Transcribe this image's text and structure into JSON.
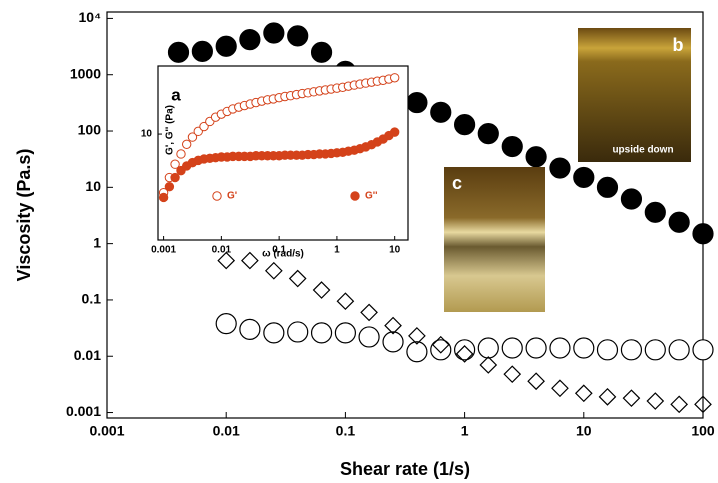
{
  "chart_data": [
    {
      "type": "scatter",
      "xlabel": "Shear rate (1/s)",
      "ylabel": "Viscosity (Pa.s)",
      "log_x": true,
      "log_y": true,
      "xlim": [
        0.001,
        100
      ],
      "ylim": [
        0.0008,
        13000
      ],
      "xticks": [
        0.001,
        0.01,
        0.1,
        1,
        10,
        100
      ],
      "yticks": [
        0.001,
        0.01,
        0.1,
        1,
        10,
        100,
        1000,
        {
          "value": 10000,
          "label": "10⁴"
        }
      ],
      "annotations": [
        "b",
        "upside down",
        "c"
      ],
      "series": [
        {
          "color": "#000000",
          "marker": "circle-filled",
          "x": [
            0.00398,
            0.00631,
            0.01,
            0.0158,
            0.0251,
            0.0398,
            0.0631,
            0.1,
            0.158,
            0.251,
            0.398,
            0.631,
            1,
            1.58,
            2.51,
            3.98,
            6.31,
            10,
            15.8,
            25.1,
            39.8,
            63.1,
            100
          ],
          "values": [
            2500,
            2600,
            3200,
            4200,
            5500,
            4900,
            2500,
            1150,
            800,
            510,
            320,
            215,
            130,
            90,
            53,
            35,
            22,
            15,
            10,
            6.2,
            3.6,
            2.4,
            1.5
          ]
        },
        {
          "color": "#000000",
          "marker": "circle-open",
          "x": [
            0.01,
            0.0158,
            0.0251,
            0.0398,
            0.0631,
            0.1,
            0.158,
            0.251,
            0.398,
            0.631,
            1,
            1.58,
            2.51,
            3.98,
            6.31,
            10,
            15.8,
            25.1,
            39.8,
            63.1,
            100
          ],
          "values": [
            0.038,
            0.03,
            0.026,
            0.027,
            0.026,
            0.026,
            0.022,
            0.018,
            0.012,
            0.013,
            0.013,
            0.014,
            0.014,
            0.014,
            0.014,
            0.014,
            0.013,
            0.013,
            0.013,
            0.013,
            0.013
          ]
        },
        {
          "color": "#000000",
          "marker": "diamond-open",
          "x": [
            0.01,
            0.0158,
            0.0251,
            0.0398,
            0.0631,
            0.1,
            0.158,
            0.251,
            0.398,
            0.631,
            1,
            1.58,
            2.51,
            3.98,
            6.31,
            10,
            15.8,
            25.1,
            39.8,
            63.1,
            100
          ],
          "values": [
            0.5,
            0.5,
            0.33,
            0.24,
            0.15,
            0.095,
            0.06,
            0.035,
            0.023,
            0.016,
            0.011,
            0.007,
            0.0048,
            0.0036,
            0.0027,
            0.0022,
            0.0019,
            0.0018,
            0.0016,
            0.0014,
            0.0014
          ]
        }
      ]
    },
    {
      "type": "scatter",
      "xlabel": "ω (rad/s)",
      "ylabel": "G', G'' (Pa)",
      "log_x": true,
      "log_y": true,
      "xlim": [
        0.0008,
        17
      ],
      "ylim": [
        0.25,
        107
      ],
      "xticks": [
        0.001,
        0.01,
        0.1,
        1,
        10
      ],
      "yticks": [
        10
      ],
      "annotations": [
        "a"
      ],
      "series": [
        {
          "name": "G'",
          "color": "#d4421a",
          "marker": "circle-open",
          "x": [
            0.001,
            0.00126,
            0.00158,
            0.002,
            0.00251,
            0.00316,
            0.00398,
            0.00501,
            0.00631,
            0.00794,
            0.01,
            0.0126,
            0.0158,
            0.02,
            0.0251,
            0.0316,
            0.0398,
            0.0501,
            0.0631,
            0.0794,
            0.1,
            0.126,
            0.158,
            0.2,
            0.251,
            0.316,
            0.398,
            0.501,
            0.631,
            0.794,
            1,
            1.26,
            1.58,
            2,
            2.51,
            3.16,
            3.98,
            5.01,
            6.31,
            7.94,
            10
          ],
          "values": [
            1.3,
            2.2,
            3.5,
            5,
            7,
            9,
            11,
            13,
            15.5,
            18,
            20,
            22,
            24,
            25.5,
            27,
            28.5,
            30,
            31.5,
            33,
            34,
            35.5,
            37,
            38,
            39.5,
            41,
            42,
            43.5,
            45,
            46.5,
            48,
            49.5,
            51,
            53,
            55,
            57,
            59,
            61,
            63,
            65,
            68,
            71
          ]
        },
        {
          "name": "G''",
          "color": "#d4421a",
          "marker": "circle-filled",
          "x": [
            0.001,
            0.00126,
            0.00158,
            0.002,
            0.00251,
            0.00316,
            0.00398,
            0.00501,
            0.00631,
            0.00794,
            0.01,
            0.0126,
            0.0158,
            0.02,
            0.0251,
            0.0316,
            0.0398,
            0.0501,
            0.0631,
            0.0794,
            0.1,
            0.126,
            0.158,
            0.2,
            0.251,
            0.316,
            0.398,
            0.501,
            0.631,
            0.794,
            1,
            1.26,
            1.58,
            2,
            2.51,
            3.16,
            3.98,
            5.01,
            6.31,
            7.94,
            10
          ],
          "values": [
            1.1,
            1.6,
            2.2,
            2.8,
            3.3,
            3.7,
            4.0,
            4.2,
            4.3,
            4.4,
            4.5,
            4.5,
            4.6,
            4.6,
            4.6,
            4.6,
            4.7,
            4.7,
            4.7,
            4.7,
            4.7,
            4.8,
            4.8,
            4.8,
            4.8,
            4.9,
            4.9,
            5.0,
            5.0,
            5.1,
            5.2,
            5.3,
            5.5,
            5.7,
            6.0,
            6.4,
            6.9,
            7.6,
            8.4,
            9.5,
            10.7
          ]
        }
      ]
    }
  ]
}
